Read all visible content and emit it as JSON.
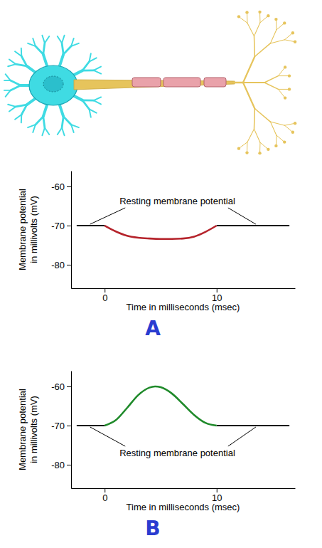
{
  "chart_data": [
    {
      "type": "line",
      "panel": "A",
      "xlabel": "Time in milliseconds (msec)",
      "ylabel": "Membrane potential in millivolts (mV)",
      "annotation": "Resting membrane potential",
      "x": [
        -2.5,
        0,
        1,
        2,
        3,
        4,
        5,
        6,
        7,
        8,
        9,
        10,
        16.5
      ],
      "series": [
        {
          "color": "#000000",
          "values": [
            -70,
            -70,
            null,
            null,
            null,
            null,
            null,
            null,
            null,
            null,
            null,
            -70,
            -70
          ]
        },
        {
          "color": "#b5232b",
          "values": [
            null,
            -70,
            -71.5,
            -72.6,
            -73.1,
            -73.3,
            -73.4,
            -73.4,
            -73.3,
            -72.8,
            -71.6,
            -70,
            null
          ]
        }
      ],
      "xlim": [
        -3,
        17
      ],
      "xticks": [
        0,
        10
      ],
      "ylim": [
        -86,
        -56
      ],
      "yticks": [
        -60,
        -70,
        -80
      ]
    },
    {
      "type": "line",
      "panel": "B",
      "xlabel": "Time in milliseconds (msec)",
      "ylabel": "Membrane potential in millivolts (mV)",
      "annotation": "Resting membrane potential",
      "x": [
        -2.5,
        0,
        1,
        2,
        3,
        4,
        4.5,
        5,
        6,
        7,
        8,
        9,
        10,
        16.5
      ],
      "series": [
        {
          "color": "#000000",
          "values": [
            -70,
            -70,
            null,
            null,
            null,
            null,
            null,
            null,
            null,
            null,
            null,
            null,
            -70,
            -70
          ]
        },
        {
          "color": "#1f8a2a",
          "values": [
            null,
            -70,
            -68.6,
            -65.5,
            -62.2,
            -60.3,
            -60,
            -60.2,
            -61.8,
            -64.5,
            -67.3,
            -69.3,
            -70,
            null
          ]
        }
      ],
      "xlim": [
        -3,
        17
      ],
      "xticks": [
        0,
        10
      ],
      "ylim": [
        -86,
        -56
      ],
      "yticks": [
        -60,
        -70,
        -80
      ]
    }
  ]
}
